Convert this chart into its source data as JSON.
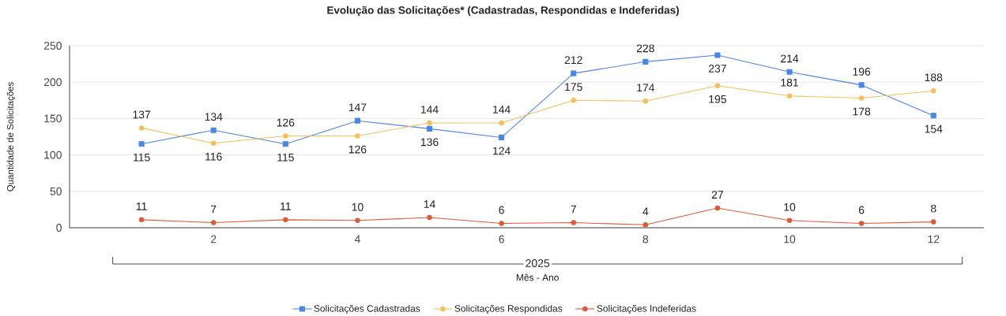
{
  "chart_data": {
    "type": "line",
    "title": "Evolução das Solicitações* (Cadastradas, Respondidas e Indeferidas)",
    "xlabel": "Mês - Ano",
    "ylabel": "Quantidade de Solicitações",
    "annotations": [
      "2025"
    ],
    "x": [
      1,
      2,
      3,
      4,
      5,
      6,
      7,
      8,
      9,
      10,
      11,
      12
    ],
    "series": [
      {
        "name": "Solicitações Cadastradas",
        "color": "#4a86e8",
        "marker": "square",
        "values": [
          115,
          134,
          115,
          147,
          136,
          124,
          212,
          228,
          237,
          214,
          196,
          154
        ]
      },
      {
        "name": "Solicitações Respondidas",
        "color": "#f6bf5a",
        "marker": "circle",
        "values": [
          137,
          116,
          126,
          126,
          144,
          144,
          175,
          174,
          195,
          181,
          178,
          188
        ]
      },
      {
        "name": "Solicitações Indeferidas",
        "color": "#dc5b37",
        "marker": "circle",
        "values": [
          11,
          7,
          11,
          10,
          14,
          6,
          7,
          4,
          27,
          10,
          6,
          8
        ]
      }
    ],
    "xlim": [
      0,
      12.7
    ],
    "xticks": [
      2,
      4,
      6,
      8,
      10,
      12
    ],
    "ylim": [
      0,
      250
    ],
    "yticks": [
      0,
      50,
      100,
      150,
      200,
      250
    ],
    "grid": "y",
    "legend": "bottom",
    "data_labels": true
  }
}
